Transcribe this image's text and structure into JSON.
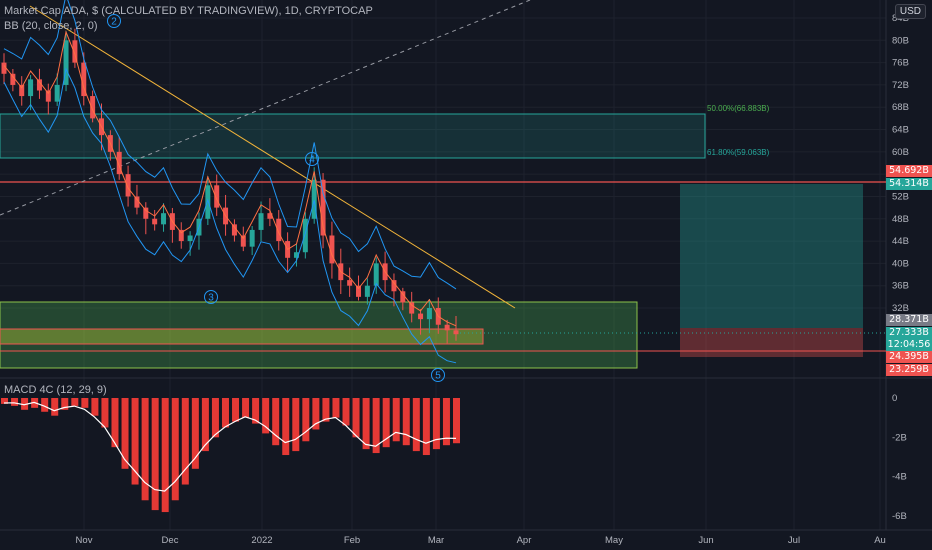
{
  "header": {
    "symbol_title": "Market Cap ADA, $ (CALCULATED BY TRADINGVIEW), 1D, CRYPTOCAP",
    "indicator_bb": "BB (20, close, 2, 0)",
    "indicator_macd": "MACD 4C (12, 29, 9)",
    "currency_button": "USD"
  },
  "price_axis": {
    "labels": [
      "84B",
      "80B",
      "76B",
      "72B",
      "68B",
      "64B",
      "60B",
      "56B",
      "52B",
      "48B",
      "44B",
      "40B",
      "36B",
      "32B"
    ]
  },
  "macd_axis": {
    "labels": [
      "0",
      "-2B",
      "-4B",
      "-6B"
    ]
  },
  "time_axis": {
    "labels": [
      "Nov",
      "Dec",
      "2022",
      "Feb",
      "Mar",
      "Apr",
      "May",
      "Jun",
      "Jul",
      "Au"
    ]
  },
  "price_tags": {
    "red_line": "54.692B",
    "target": "54.314B",
    "gray": "28.371B",
    "current": "27.333B",
    "countdown": "12:04:56",
    "stop": "24.395B",
    "low": "23.259B"
  },
  "fib_labels": {
    "level_50": "50.00%(66.883B)",
    "level_618": "61.80%(59.063B)"
  },
  "wave_labels": [
    "2",
    "3",
    "4",
    "5"
  ],
  "colors": {
    "background": "#131722",
    "up": "#26a69a",
    "down": "#ef5350",
    "bb_band": "#2196f3",
    "trendline": "#f0b33a",
    "zone_green": "#4caf50",
    "macd_hist": "#e53935"
  },
  "chart_data": {
    "type": "candlestick",
    "title": "Market Cap ADA, $ (CALCULATED BY TRADINGVIEW), 1D, CRYPTOCAP",
    "ylim": [
      22,
      86
    ],
    "y_unit": "B USD",
    "x": [
      "Nov",
      "Dec",
      "2022",
      "Feb",
      "Mar",
      "Apr",
      "May",
      "Jun",
      "Jul",
      "Au"
    ],
    "series": [
      {
        "name": "Market Cap ADA",
        "approx_closes": [
          74,
          72,
          70,
          73,
          71,
          69,
          72,
          80,
          76,
          70,
          66,
          63,
          60,
          56,
          52,
          50,
          48,
          47,
          49,
          46,
          44,
          45,
          48,
          54,
          50,
          47,
          45,
          43,
          46,
          49,
          48,
          44,
          41,
          42,
          48,
          55,
          45,
          40,
          37,
          36,
          34,
          36,
          40,
          37,
          35,
          33,
          31,
          30,
          32,
          29,
          28,
          27.3
        ]
      }
    ],
    "fib_levels": {
      "50.00%": 66.883,
      "61.80%": 59.063
    },
    "macd_histogram_approx": [
      -0.3,
      -0.4,
      -0.6,
      -0.5,
      -0.7,
      -0.9,
      -0.6,
      -0.4,
      -0.5,
      -0.9,
      -1.5,
      -2.5,
      -3.6,
      -4.4,
      -5.2,
      -5.7,
      -5.8,
      -5.2,
      -4.4,
      -3.6,
      -2.7,
      -2.0,
      -1.5,
      -1.2,
      -1.0,
      -1.3,
      -1.8,
      -2.4,
      -2.9,
      -2.7,
      -2.2,
      -1.6,
      -1.2,
      -1.0,
      -1.4,
      -2.0,
      -2.6,
      -2.8,
      -2.5,
      -2.2,
      -2.4,
      -2.7,
      -2.9,
      -2.6,
      -2.4,
      -2.3
    ]
  }
}
